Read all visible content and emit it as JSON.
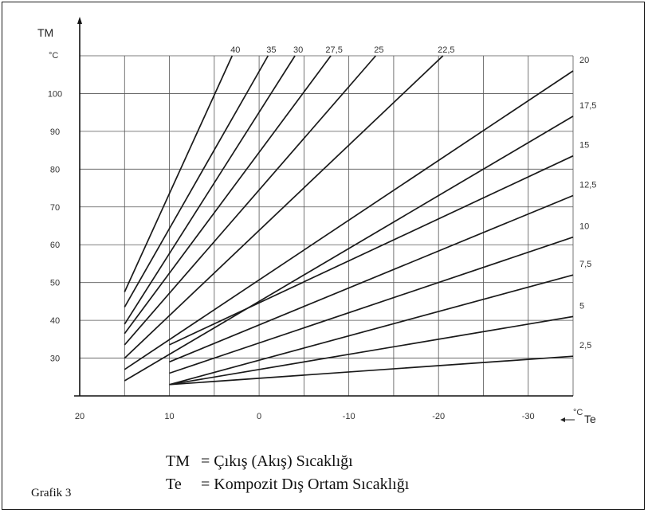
{
  "figure": {
    "caption": "Grafik 3",
    "legend": [
      {
        "symbol": "TM",
        "text": "= Çıkış (Akış) Sıcaklığı"
      },
      {
        "symbol": "Te",
        "text": "= Kompozit Dış Ortam Sıcaklığı"
      }
    ]
  },
  "chart_data": {
    "type": "line",
    "y_title": "TM",
    "y_unit": "°C",
    "x_title": "Te",
    "x_unit": "°C",
    "x_reversed": true,
    "xlim": [
      20,
      -35
    ],
    "ylim": [
      20,
      110
    ],
    "x_ticks": [
      20,
      10,
      0,
      -10,
      -20,
      -30
    ],
    "y_ticks": [
      30,
      40,
      50,
      60,
      70,
      80,
      90,
      100
    ],
    "grid": true,
    "series": [
      {
        "name": "40",
        "points": [
          [
            15,
            47.5
          ],
          [
            3,
            110
          ]
        ]
      },
      {
        "name": "35",
        "points": [
          [
            15,
            43.5
          ],
          [
            -1,
            110
          ]
        ]
      },
      {
        "name": "30",
        "points": [
          [
            15,
            39
          ],
          [
            -4,
            110
          ]
        ]
      },
      {
        "name": "27,5",
        "points": [
          [
            15,
            36.5
          ],
          [
            -8,
            110
          ]
        ]
      },
      {
        "name": "25",
        "points": [
          [
            15,
            33.5
          ],
          [
            -13,
            110
          ]
        ]
      },
      {
        "name": "22,5",
        "points": [
          [
            15,
            30
          ],
          [
            -20.5,
            110
          ]
        ]
      },
      {
        "name": "20",
        "points": [
          [
            15,
            27
          ],
          [
            -35,
            106
          ]
        ]
      },
      {
        "name": "17,5",
        "points": [
          [
            15,
            24
          ],
          [
            -35,
            94
          ]
        ]
      },
      {
        "name": "15",
        "points": [
          [
            10,
            33.5
          ],
          [
            -35,
            83.5
          ]
        ]
      },
      {
        "name": "12,5",
        "points": [
          [
            10,
            29
          ],
          [
            -35,
            73
          ]
        ]
      },
      {
        "name": "10",
        "points": [
          [
            10,
            26
          ],
          [
            -35,
            62
          ]
        ]
      },
      {
        "name": "7,5",
        "points": [
          [
            10,
            23
          ],
          [
            -35,
            52
          ]
        ]
      },
      {
        "name": "5",
        "points": [
          [
            10,
            23
          ],
          [
            -35,
            41
          ]
        ]
      },
      {
        "name": "2,5",
        "points": [
          [
            10,
            23
          ],
          [
            -35,
            30.5
          ]
        ]
      }
    ],
    "line_color": "#1a1a1a",
    "grid_color": "#555555"
  }
}
